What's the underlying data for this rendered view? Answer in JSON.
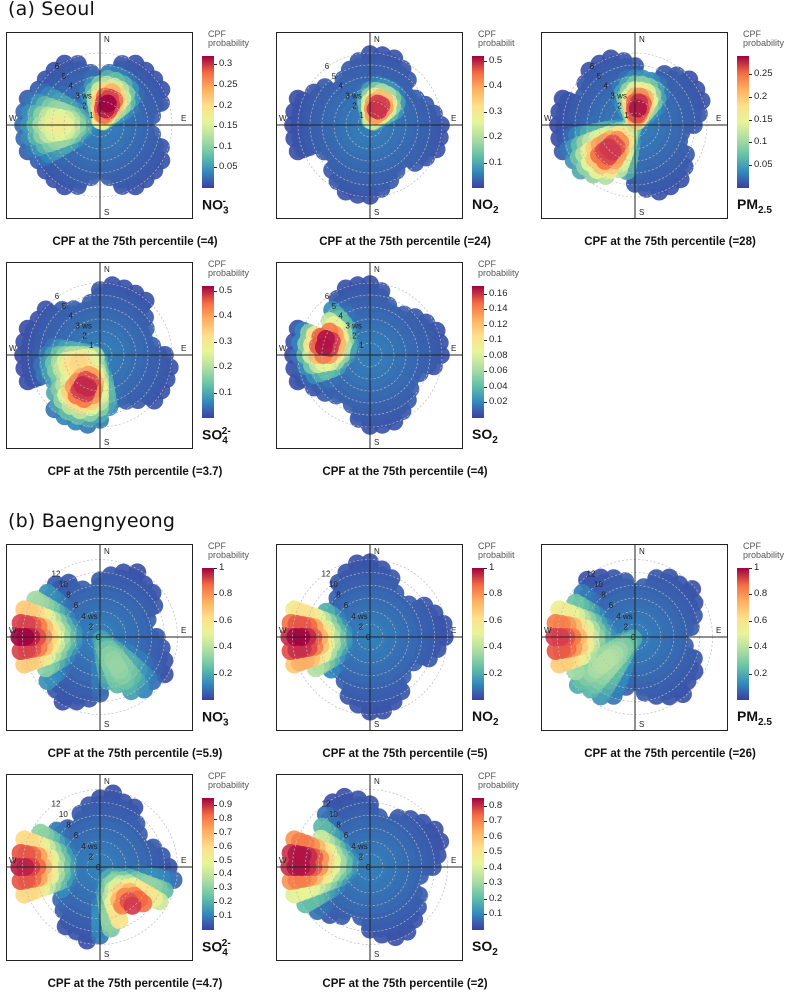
{
  "sections": [
    {
      "title": "(a) Seoul",
      "panels": [
        {
          "pollutant": "NO3-",
          "pollutant_main": "NO",
          "pollutant_sub": "3",
          "pollutant_sup": "-",
          "caption": "CPF at the 75th percentile (=4)",
          "cbar_title_1": "CPF",
          "cbar_title_2": "probability",
          "ticks": [
            0.05,
            0.1,
            0.15,
            0.2,
            0.25,
            0.3
          ],
          "ticks_text": [
            "0.05",
            "0.1",
            "0.15",
            "0.2",
            "0.25",
            "0.3"
          ],
          "max": 0.32,
          "ws_labels": [
            "1",
            "2",
            "3 ws",
            "4",
            "5",
            "6"
          ],
          "hotspots": [
            {
              "dir_deg": 20,
              "ws": 1.8,
              "value": 0.32,
              "spread": 1.2
            },
            {
              "dir_deg": 270,
              "ws": 3.5,
              "value": 0.16,
              "spread": 1.5
            }
          ]
        },
        {
          "pollutant": "NO2",
          "pollutant_main": "NO",
          "pollutant_sub": "2",
          "pollutant_sup": "",
          "caption": "CPF at the 75th percentile (=24)",
          "cbar_title_1": "CPF",
          "cbar_title_2": "probabilit",
          "ticks": [
            0.1,
            0.2,
            0.3,
            0.4,
            0.5
          ],
          "ticks_text": [
            "0.1",
            "0.2",
            "0.3",
            "0.4",
            "0.5"
          ],
          "max": 0.52,
          "ws_labels": [
            "1",
            "2",
            "3 ws",
            "4",
            "5",
            "6"
          ],
          "hotspots": [
            {
              "dir_deg": 25,
              "ws": 1.6,
              "value": 0.5,
              "spread": 0.9
            }
          ]
        },
        {
          "pollutant": "PM2.5",
          "pollutant_main": "PM",
          "pollutant_sub": "2.5",
          "pollutant_sup": "",
          "caption": "CPF at the 75th percentile (=28)",
          "cbar_title_1": "CPF",
          "cbar_title_2": "probability",
          "ticks": [
            0.05,
            0.1,
            0.15,
            0.2,
            0.25
          ],
          "ticks_text": [
            "0.05",
            "0.1",
            "0.15",
            "0.2",
            "0.25"
          ],
          "max": 0.29,
          "ws_labels": [
            "1",
            "2",
            "3 ws",
            "4",
            "5",
            "6"
          ],
          "hotspots": [
            {
              "dir_deg": 10,
              "ws": 1.5,
              "value": 0.28,
              "spread": 1.2
            },
            {
              "dir_deg": 225,
              "ws": 3.0,
              "value": 0.27,
              "spread": 1.6
            }
          ]
        },
        {
          "pollutant": "SO42-",
          "pollutant_main": "SO",
          "pollutant_sub": "4",
          "pollutant_sup": "2-",
          "caption": "CPF at the 75th percentile (=3.7)",
          "cbar_title_1": "CPF",
          "cbar_title_2": "probability",
          "ticks": [
            0.1,
            0.2,
            0.3,
            0.4,
            0.5
          ],
          "ticks_text": [
            "0.1",
            "0.2",
            "0.3",
            "0.4",
            "0.5"
          ],
          "max": 0.52,
          "ws_labels": [
            "1",
            "2",
            "3 ws",
            "4",
            "5",
            "6"
          ],
          "hotspots": [
            {
              "dir_deg": 205,
              "ws": 3.0,
              "value": 0.5,
              "spread": 1.4
            },
            {
              "dir_deg": 250,
              "ws": 2.0,
              "value": 0.3,
              "spread": 1.5
            }
          ]
        },
        {
          "pollutant": "SO2",
          "pollutant_main": "SO",
          "pollutant_sub": "2",
          "pollutant_sup": "",
          "caption": "CPF at the 75th percentile (=4)",
          "cbar_title_1": "CPF",
          "cbar_title_2": "probability",
          "ticks": [
            0.02,
            0.04,
            0.06,
            0.08,
            0.1,
            0.12,
            0.14,
            0.16
          ],
          "ticks_text": [
            "0.02",
            "0.04",
            "0.06",
            "0.08",
            "0.1",
            "0.12",
            "0.14",
            "0.16"
          ],
          "max": 0.17,
          "ws_labels": [
            "1",
            "2",
            "3 ws",
            "4",
            "5",
            "6"
          ],
          "hotspots": [
            {
              "dir_deg": 285,
              "ws": 3.8,
              "value": 0.17,
              "spread": 1.0
            }
          ]
        }
      ]
    },
    {
      "title": "(b) Baengnyeong",
      "panels": [
        {
          "pollutant": "NO3-",
          "pollutant_main": "NO",
          "pollutant_sub": "3",
          "pollutant_sup": "-",
          "caption": "CPF at the 75th percentile (=5.9)",
          "cbar_title_1": "CPF",
          "cbar_title_2": "probability",
          "ticks": [
            0.2,
            0.4,
            0.6,
            0.8,
            1
          ],
          "ticks_text": [
            "0.2",
            "0.4",
            "0.6",
            "0.8",
            "1"
          ],
          "max": 1.0,
          "ws_labels": [
            "0",
            "2",
            "4 ws",
            "6",
            "8",
            "10",
            "12"
          ],
          "hotspots": [
            {
              "dir_deg": 270,
              "ws": 12,
              "value": 1.0,
              "spread": 2.5
            },
            {
              "dir_deg": 150,
              "ws": 5,
              "value": 0.3,
              "spread": 2.5
            }
          ]
        },
        {
          "pollutant": "NO2",
          "pollutant_main": "NO",
          "pollutant_sub": "2",
          "pollutant_sup": "",
          "caption": "CPF at the 75th percentile (=5)",
          "cbar_title_1": "CPF",
          "cbar_title_2": "probabilit",
          "ticks": [
            0.2,
            0.4,
            0.6,
            0.8,
            1
          ],
          "ticks_text": [
            "0.2",
            "0.4",
            "0.6",
            "0.8",
            "1"
          ],
          "max": 1.0,
          "ws_labels": [
            "0",
            "2",
            "4 ws",
            "6",
            "8",
            "10",
            "12"
          ],
          "hotspots": [
            {
              "dir_deg": 268,
              "ws": 11,
              "value": 1.0,
              "spread": 2.2
            }
          ]
        },
        {
          "pollutant": "PM2.5",
          "pollutant_main": "PM",
          "pollutant_sub": "2.5",
          "pollutant_sup": "",
          "caption": "CPF at the 75th percentile (=26)",
          "cbar_title_1": "CPF",
          "cbar_title_2": "probability",
          "ticks": [
            0.2,
            0.4,
            0.6,
            0.8,
            1
          ],
          "ticks_text": [
            "0.2",
            "0.4",
            "0.6",
            "0.8",
            "1"
          ],
          "max": 1.0,
          "ws_labels": [
            "0",
            "2",
            "4 ws",
            "6",
            "8",
            "10",
            "12"
          ],
          "hotspots": [
            {
              "dir_deg": 268,
              "ws": 12,
              "value": 0.9,
              "spread": 2.5
            },
            {
              "dir_deg": 230,
              "ws": 6,
              "value": 0.35,
              "spread": 3
            }
          ]
        },
        {
          "pollutant": "SO42-",
          "pollutant_main": "SO",
          "pollutant_sub": "4",
          "pollutant_sup": "2-",
          "caption": "CPF at the 75th percentile (=4.7)",
          "cbar_title_1": "CPF",
          "cbar_title_2": "probability",
          "ticks": [
            0.1,
            0.2,
            0.3,
            0.4,
            0.5,
            0.6,
            0.7,
            0.8,
            0.9
          ],
          "ticks_text": [
            "0.1",
            "0.2",
            "0.3",
            "0.4",
            "0.5",
            "0.6",
            "0.7",
            "0.8",
            "0.9"
          ],
          "max": 0.95,
          "ws_labels": [
            "0",
            "2",
            "4 ws",
            "6",
            "8",
            "10",
            "12"
          ],
          "hotspots": [
            {
              "dir_deg": 270,
              "ws": 12,
              "value": 0.9,
              "spread": 2.3
            },
            {
              "dir_deg": 140,
              "ws": 8,
              "value": 0.85,
              "spread": 2.0
            }
          ]
        },
        {
          "pollutant": "SO2",
          "pollutant_main": "SO",
          "pollutant_sub": "2",
          "pollutant_sup": "",
          "caption": "CPF at the 75th percentile (=2)",
          "cbar_title_1": "CPF",
          "cbar_title_2": "probability",
          "ticks": [
            0.1,
            0.2,
            0.3,
            0.4,
            0.5,
            0.6,
            0.7,
            0.8
          ],
          "ticks_text": [
            "0.1",
            "0.2",
            "0.3",
            "0.4",
            "0.5",
            "0.6",
            "0.7",
            "0.8"
          ],
          "max": 0.85,
          "ws_labels": [
            "0",
            "2",
            "4 ws",
            "6",
            "8",
            "10",
            "12"
          ],
          "hotspots": [
            {
              "dir_deg": 275,
              "ws": 11,
              "value": 0.85,
              "spread": 2.5
            }
          ]
        }
      ]
    }
  ],
  "chart_data": {
    "type": "heatmap",
    "description_title": "Conditional probability function (CPF) polar plots",
    "axis_labels": {
      "N": "N",
      "E": "E",
      "S": "S",
      "W": "W"
    },
    "radial_variable": "ws"
  }
}
